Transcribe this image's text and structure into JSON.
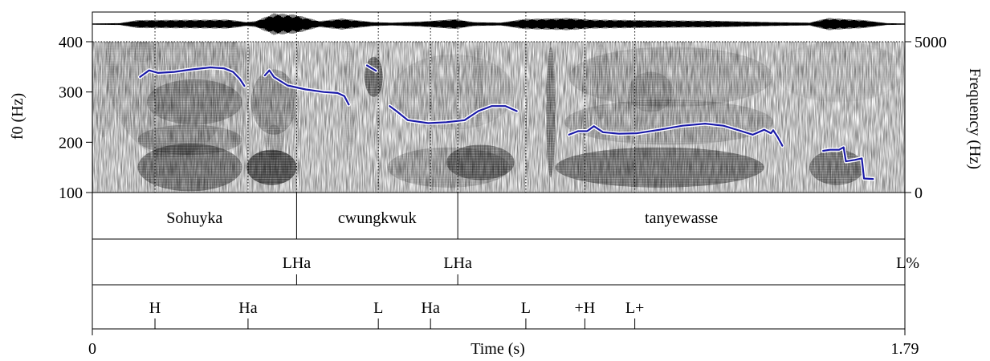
{
  "chart_data": {
    "type": "line",
    "title": "",
    "xlabel": "Time (s)",
    "ylabel_left": "f0 (Hz)",
    "ylabel_right": "Frequency (Hz)",
    "xlim": [
      0,
      1.79
    ],
    "x_tick_labels": [
      "0",
      "1.79"
    ],
    "ylim_left": [
      100,
      400
    ],
    "y_ticks_left": [
      100,
      200,
      300,
      400
    ],
    "ylim_right": [
      0,
      5000
    ],
    "y_ticks_right": [
      0,
      5000
    ],
    "grid": false,
    "series": [
      {
        "color": "#1a1aa8",
        "segments": [
          [
            [
              0.105,
              330
            ],
            [
              0.125,
              343
            ],
            [
              0.145,
              338
            ],
            [
              0.18,
              340
            ],
            [
              0.22,
              345
            ],
            [
              0.26,
              349
            ],
            [
              0.29,
              347
            ],
            [
              0.31,
              340
            ],
            [
              0.325,
              326
            ],
            [
              0.335,
              312
            ]
          ],
          [
            [
              0.38,
              333
            ],
            [
              0.39,
              343
            ],
            [
              0.4,
              330
            ],
            [
              0.43,
              313
            ],
            [
              0.47,
              305
            ],
            [
              0.51,
              300
            ],
            [
              0.54,
              298
            ],
            [
              0.555,
              292
            ],
            [
              0.565,
              275
            ]
          ],
          [
            [
              0.605,
              353
            ],
            [
              0.625,
              342
            ]
          ],
          [
            [
              0.655,
              272
            ],
            [
              0.67,
              262
            ],
            [
              0.695,
              244
            ],
            [
              0.74,
              238
            ],
            [
              0.78,
              240
            ],
            [
              0.82,
              244
            ],
            [
              0.85,
              262
            ],
            [
              0.88,
              272
            ],
            [
              0.91,
              272
            ],
            [
              0.935,
              262
            ]
          ],
          [
            [
              1.05,
              215
            ],
            [
              1.07,
              222
            ],
            [
              1.09,
              222
            ],
            [
              1.105,
              232
            ],
            [
              1.125,
              220
            ],
            [
              1.16,
              217
            ],
            [
              1.2,
              218
            ],
            [
              1.25,
              225
            ],
            [
              1.3,
              233
            ],
            [
              1.35,
              237
            ],
            [
              1.39,
              233
            ],
            [
              1.43,
              222
            ],
            [
              1.455,
              215
            ],
            [
              1.48,
              225
            ],
            [
              1.495,
              218
            ],
            [
              1.5,
              224
            ],
            [
              1.51,
              210
            ],
            [
              1.52,
              193
            ]
          ],
          [
            [
              1.61,
              183
            ],
            [
              1.625,
              185
            ],
            [
              1.645,
              185
            ],
            [
              1.655,
              190
            ],
            [
              1.66,
              162
            ],
            [
              1.68,
              165
            ],
            [
              1.695,
              168
            ],
            [
              1.7,
              128
            ],
            [
              1.72,
              127
            ]
          ]
        ]
      }
    ],
    "tiers": [
      {
        "name": "",
        "intervals": [
          {
            "start": 0,
            "end": 0.45,
            "label": "Sohuyka"
          },
          {
            "start": 0.45,
            "end": 0.805,
            "label": "cwungkwuk"
          },
          {
            "start": 0.805,
            "end": 1.79,
            "label": "tanyewasse"
          }
        ]
      },
      {
        "name": "",
        "points": [
          {
            "time": 0.45,
            "label": "LHa"
          },
          {
            "time": 0.805,
            "label": "LHa"
          },
          {
            "time": 1.79,
            "label": "L%"
          }
        ]
      },
      {
        "name": "",
        "points": [
          {
            "time": 0.138,
            "label": "H"
          },
          {
            "time": 0.343,
            "label": "Ha"
          },
          {
            "time": 0.63,
            "label": "L"
          },
          {
            "time": 0.745,
            "label": "Ha"
          },
          {
            "time": 0.955,
            "label": "L"
          },
          {
            "time": 1.085,
            "label": "+H"
          },
          {
            "time": 1.195,
            "label": "L+"
          }
        ]
      }
    ]
  }
}
